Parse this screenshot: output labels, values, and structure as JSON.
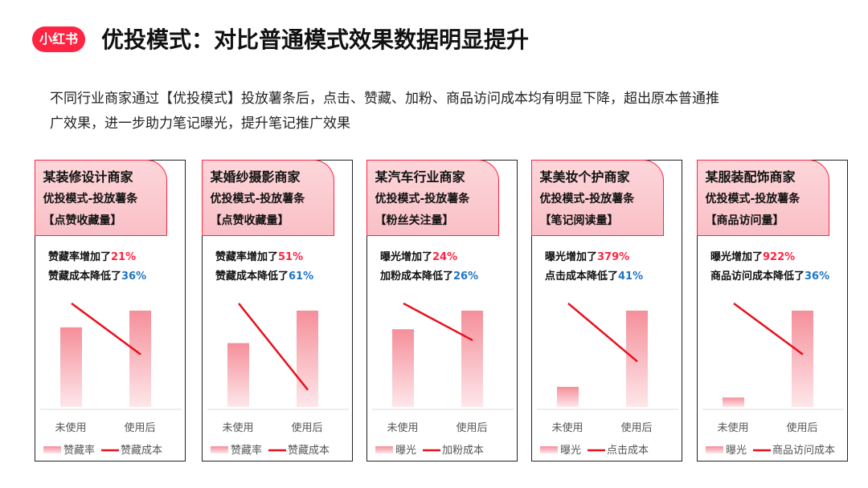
{
  "header": {
    "logo_text": "小红书",
    "title": "优投模式：对比普通模式效果数据明显提升"
  },
  "intro": {
    "line1": "不同行业商家通过【优投模式】投放薯条后，点击、赞藏、加粉、商品访问成本均有明显下降，超出原本普通推",
    "line2": "广效果，进一步助力笔记曝光，提升笔记推广效果"
  },
  "colors": {
    "brand": "#ff2442",
    "increase": "#ff2442",
    "decrease": "#1f74c4",
    "bar_top": "#f58f9a",
    "bar_bottom": "#fde7ea",
    "line": "#e8101c"
  },
  "cards": [
    {
      "company": "某装修设计商家",
      "mode": "优投模式-投放薯条",
      "metric": "【点赞收藏量】",
      "stat1_prefix": "赞藏率增加了",
      "stat1_value": "21%",
      "stat2_prefix": "赞藏成本降低了",
      "stat2_value": "36%"
    },
    {
      "company": "某婚纱摄影商家",
      "mode": "优投模式-投放薯条",
      "metric": "【点赞收藏量】",
      "stat1_prefix": "赞藏率增加了",
      "stat1_value": "51%",
      "stat2_prefix": "赞藏成本降低了",
      "stat2_value": "61%"
    },
    {
      "company": "某汽车行业商家",
      "mode": "优投模式-投放薯条",
      "metric": "【粉丝关注量】",
      "stat1_prefix": "曝光增加了",
      "stat1_value": "24%",
      "stat2_prefix": "加粉成本降低了",
      "stat2_value": "26%"
    },
    {
      "company": "某美妆个护商家",
      "mode": "优投模式-投放薯条",
      "metric": "【笔记阅读量】",
      "stat1_prefix": "曝光增加了",
      "stat1_value": "379%",
      "stat2_prefix": "点击成本降低了",
      "stat2_value": "41%"
    },
    {
      "company": "某服装配饰商家",
      "mode": "优投模式-投放薯条",
      "metric": "【商品访问量】",
      "stat1_prefix": "曝光增加了",
      "stat1_value": "922%",
      "stat2_prefix": "商品访问成本降低了",
      "stat2_value": "36%"
    }
  ],
  "chart_data": [
    {
      "type": "bar",
      "categories": [
        "未使用",
        "使用后"
      ],
      "series": [
        {
          "name": "赞藏率",
          "type": "bar",
          "values": [
            1.0,
            1.21
          ]
        },
        {
          "name": "赞藏成本",
          "type": "line",
          "values": [
            1.0,
            0.64
          ]
        }
      ],
      "legend": "bottom",
      "grid": false
    },
    {
      "type": "bar",
      "categories": [
        "未使用",
        "使用后"
      ],
      "series": [
        {
          "name": "赞藏率",
          "type": "bar",
          "values": [
            1.0,
            1.51
          ]
        },
        {
          "name": "赞藏成本",
          "type": "line",
          "values": [
            1.0,
            0.39
          ]
        }
      ],
      "legend": "bottom",
      "grid": false
    },
    {
      "type": "bar",
      "categories": [
        "未使用",
        "使用后"
      ],
      "series": [
        {
          "name": "曝光",
          "type": "bar",
          "values": [
            1.0,
            1.24
          ]
        },
        {
          "name": "加粉成本",
          "type": "line",
          "values": [
            1.0,
            0.74
          ]
        }
      ],
      "legend": "bottom",
      "grid": false
    },
    {
      "type": "bar",
      "categories": [
        "未使用",
        "使用后"
      ],
      "series": [
        {
          "name": "曝光",
          "type": "bar",
          "values": [
            1.0,
            4.79
          ]
        },
        {
          "name": "点击成本",
          "type": "line",
          "values": [
            1.0,
            0.59
          ]
        }
      ],
      "legend": "bottom",
      "grid": false
    },
    {
      "type": "bar",
      "categories": [
        "未使用",
        "使用后"
      ],
      "series": [
        {
          "name": "曝光",
          "type": "bar",
          "values": [
            1.0,
            10.22
          ]
        },
        {
          "name": "商品访问成本",
          "type": "line",
          "values": [
            1.0,
            0.64
          ]
        }
      ],
      "legend": "bottom",
      "grid": false
    }
  ]
}
